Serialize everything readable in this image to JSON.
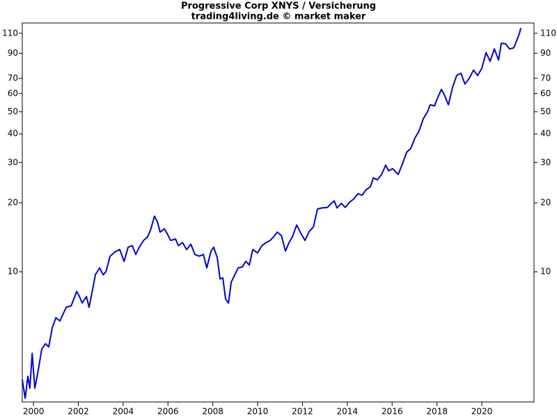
{
  "chart_data": {
    "type": "line",
    "title": "Progressive Corp XNYS / Versicherung",
    "subtitle": "trading4living.de © market maker",
    "log_scale": true,
    "xlim": [
      1999.5,
      2022.33
    ],
    "xticks": [
      2000,
      2002,
      2004,
      2006,
      2008,
      2010,
      2012,
      2014,
      2016,
      2018,
      2020
    ],
    "ylim": [
      2.7,
      122
    ],
    "yticks": [
      10,
      20,
      30,
      40,
      50,
      60,
      70,
      90,
      110
    ],
    "series": [
      {
        "color": "#0000cc",
        "x": [
          1999.5,
          1999.63,
          1999.75,
          1999.84,
          1999.94,
          2000.06,
          2000.22,
          2000.37,
          2000.53,
          2000.68,
          2000.84,
          2001.0,
          2001.18,
          2001.46,
          2001.68,
          2001.93,
          2002.05,
          2002.17,
          2002.36,
          2002.48,
          2002.61,
          2002.76,
          2002.95,
          2003.11,
          2003.23,
          2003.42,
          2003.63,
          2003.85,
          2004.04,
          2004.22,
          2004.41,
          2004.56,
          2004.72,
          2004.91,
          2005.09,
          2005.22,
          2005.4,
          2005.53,
          2005.65,
          2005.84,
          2005.96,
          2006.12,
          2006.34,
          2006.46,
          2006.65,
          2006.83,
          2007.02,
          2007.2,
          2007.39,
          2007.58,
          2007.73,
          2007.92,
          2008.04,
          2008.2,
          2008.32,
          2008.45,
          2008.57,
          2008.7,
          2008.82,
          2008.98,
          2009.13,
          2009.32,
          2009.47,
          2009.63,
          2009.78,
          2010.0,
          2010.19,
          2010.37,
          2010.56,
          2010.71,
          2010.87,
          2011.06,
          2011.24,
          2011.4,
          2011.55,
          2011.74,
          2011.93,
          2012.11,
          2012.3,
          2012.49,
          2012.67,
          2012.86,
          2013.11,
          2013.29,
          2013.42,
          2013.54,
          2013.73,
          2013.91,
          2014.1,
          2014.29,
          2014.47,
          2014.66,
          2014.84,
          2015.03,
          2015.16,
          2015.34,
          2015.53,
          2015.71,
          2015.84,
          2016.02,
          2016.27,
          2016.46,
          2016.65,
          2016.83,
          2017.02,
          2017.2,
          2017.39,
          2017.58,
          2017.7,
          2017.89,
          2018.01,
          2018.2,
          2018.32,
          2018.51,
          2018.7,
          2018.88,
          2019.07,
          2019.25,
          2019.44,
          2019.63,
          2019.81,
          2020.0,
          2020.19,
          2020.37,
          2020.56,
          2020.75,
          2020.87,
          2021.06,
          2021.24,
          2021.43,
          2021.55,
          2021.68,
          2021.74
        ],
        "values": [
          3.38,
          2.8,
          3.5,
          3.1,
          4.4,
          3.1,
          3.75,
          4.6,
          4.85,
          4.7,
          5.7,
          6.3,
          6.1,
          7.0,
          7.1,
          8.2,
          7.8,
          7.3,
          7.8,
          7.0,
          8.1,
          9.7,
          10.4,
          9.7,
          10.0,
          11.7,
          12.2,
          12.5,
          11.1,
          12.8,
          13.0,
          11.9,
          12.8,
          13.7,
          14.2,
          15.2,
          17.5,
          16.5,
          14.9,
          15.4,
          14.7,
          13.7,
          13.9,
          13.0,
          13.4,
          12.5,
          13.2,
          11.9,
          11.7,
          11.9,
          10.4,
          12.3,
          12.8,
          11.5,
          9.3,
          9.4,
          7.6,
          7.3,
          9.0,
          9.7,
          10.4,
          10.5,
          11.1,
          10.7,
          12.5,
          12.1,
          13.0,
          13.4,
          13.7,
          14.2,
          14.9,
          14.4,
          12.3,
          13.4,
          14.2,
          16.0,
          14.7,
          13.7,
          15.0,
          15.7,
          18.8,
          19.0,
          19.1,
          19.9,
          20.4,
          19.0,
          19.9,
          19.1,
          20.1,
          20.8,
          21.9,
          21.6,
          22.8,
          23.5,
          25.7,
          25.2,
          26.6,
          29.2,
          27.6,
          28.2,
          26.6,
          29.6,
          33.3,
          34.5,
          38.4,
          41.1,
          46.6,
          50.0,
          53.6,
          53.0,
          56.9,
          62.6,
          59.5,
          53.6,
          64.0,
          72.0,
          73.6,
          66.0,
          70.0,
          76.0,
          72.0,
          77.3,
          90.6,
          83.0,
          94.0,
          84.0,
          99.5,
          99.0,
          94.0,
          95.0,
          102.0,
          110.0,
          116.0
        ]
      }
    ]
  }
}
